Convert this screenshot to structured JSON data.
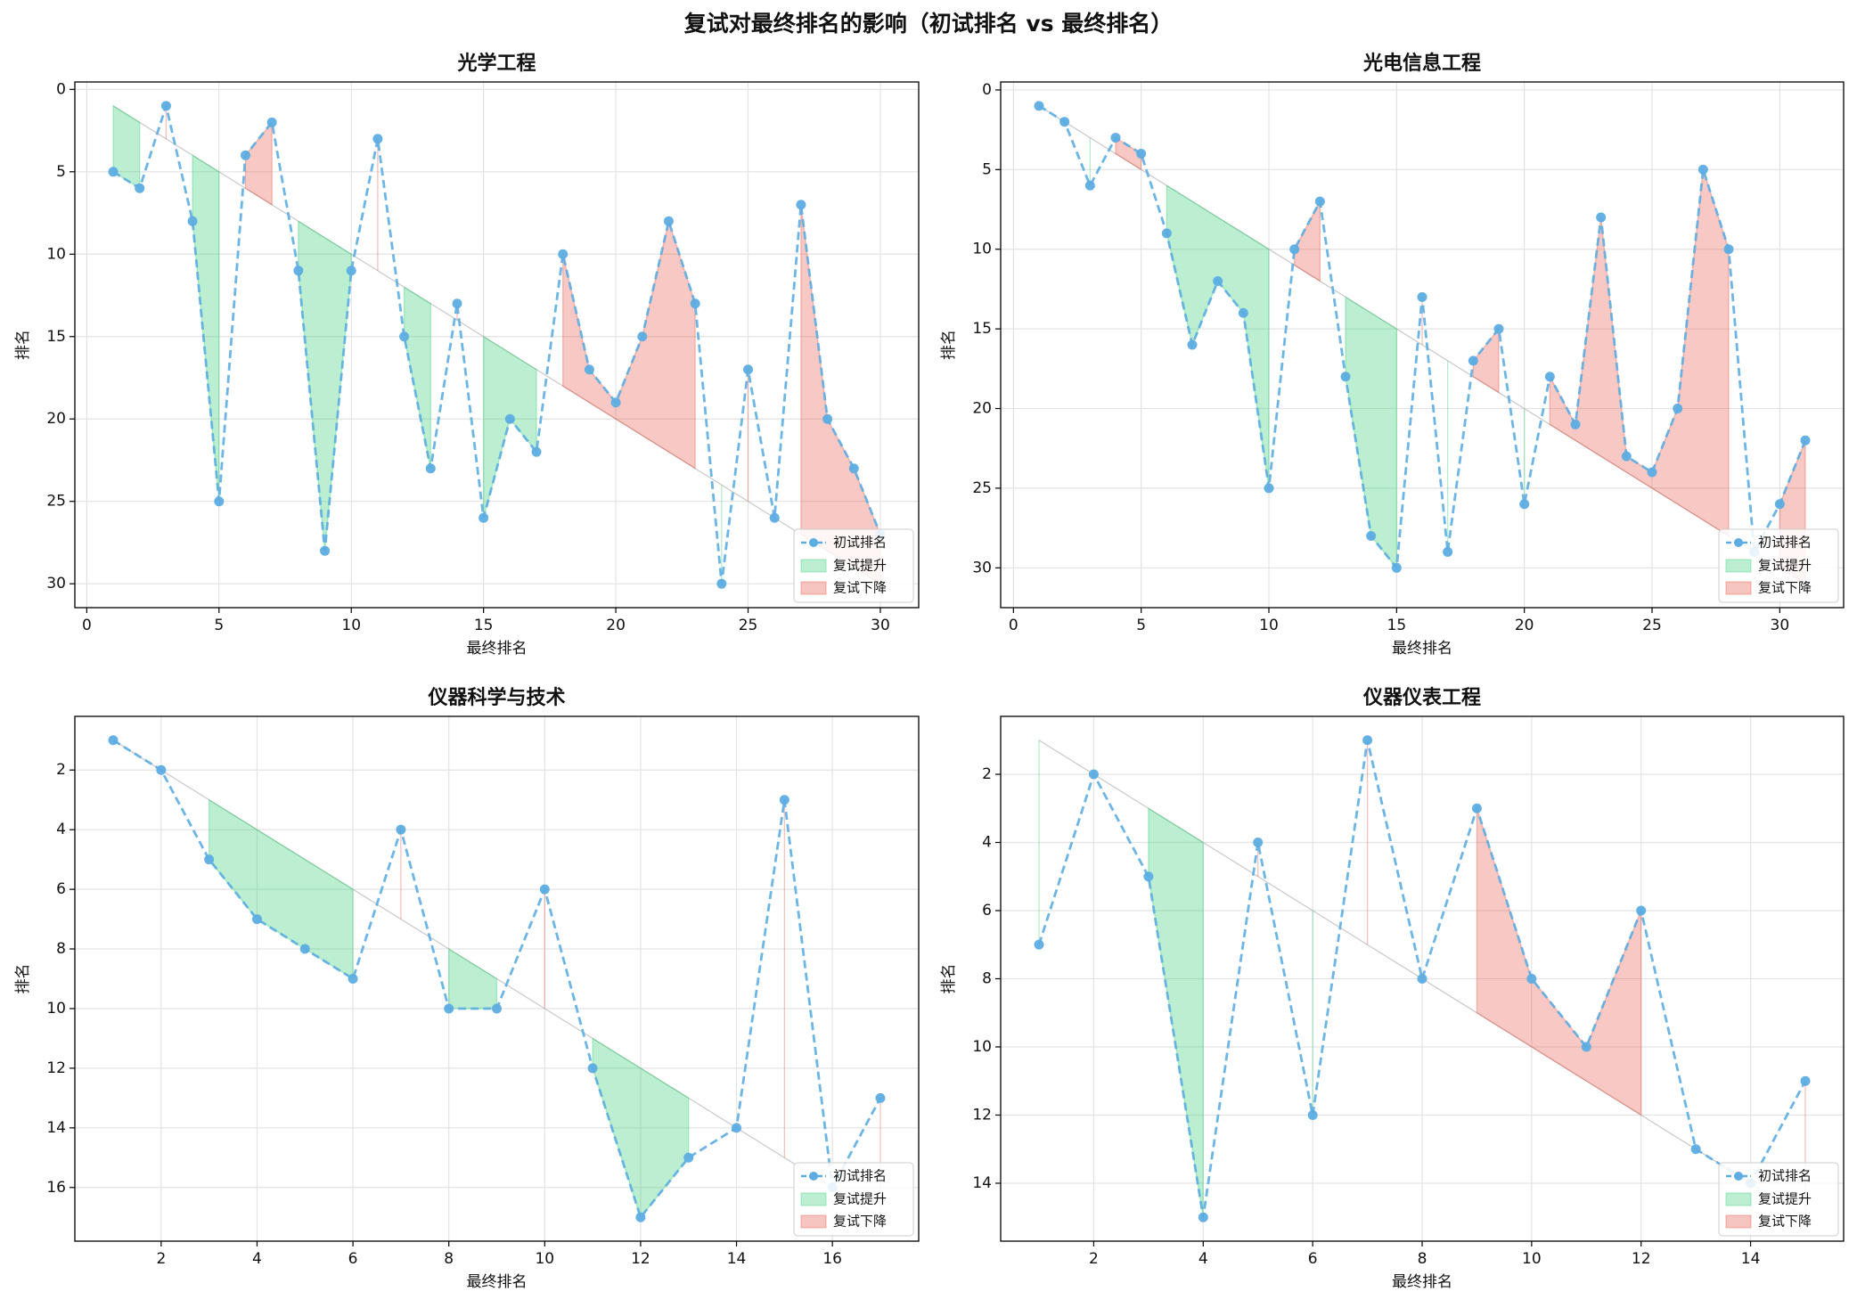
{
  "title": "复试对最终排名的影响（初试排名 vs 最终排名）",
  "chart_data": [
    {
      "type": "line",
      "title": "光学工程",
      "x_label": "最终排名",
      "y_label": "排名",
      "x": [
        1,
        2,
        3,
        4,
        5,
        6,
        7,
        8,
        9,
        10,
        11,
        12,
        13,
        14,
        15,
        16,
        17,
        18,
        19,
        20,
        21,
        22,
        23,
        24,
        25,
        26,
        27,
        28,
        29,
        30
      ],
      "series": [
        {
          "name": "初试排名",
          "color": "#5dade2",
          "values": [
            5,
            6,
            1,
            8,
            25,
            4,
            2,
            11,
            28,
            11,
            3,
            15,
            23,
            13,
            26,
            20,
            22,
            10,
            17,
            19,
            15,
            8,
            13,
            30,
            17,
            26,
            7,
            20,
            23,
            27
          ]
        }
      ],
      "fills": [
        {
          "name": "复试提升",
          "color": "#2ecc71"
        },
        {
          "name": "复试下降",
          "color": "#e74c3c"
        }
      ],
      "xlim": [
        -0.45,
        31.45
      ],
      "ylim": [
        31.45,
        -0.45
      ],
      "xticks": [
        0,
        5,
        10,
        15,
        20,
        25,
        30
      ],
      "yticks": [
        0,
        5,
        10,
        15,
        20,
        25,
        30
      ],
      "grid": true,
      "legend": "lower right"
    },
    {
      "type": "line",
      "title": "光电信息工程",
      "x_label": "最终排名",
      "y_label": "排名",
      "x": [
        1,
        2,
        3,
        4,
        5,
        6,
        7,
        8,
        9,
        10,
        11,
        12,
        13,
        14,
        15,
        16,
        17,
        18,
        19,
        20,
        21,
        22,
        23,
        24,
        25,
        26,
        27,
        28,
        29,
        30,
        31
      ],
      "series": [
        {
          "name": "初试排名",
          "color": "#5dade2",
          "values": [
            1,
            2,
            6,
            3,
            4,
            9,
            16,
            12,
            14,
            25,
            10,
            7,
            18,
            28,
            30,
            13,
            29,
            17,
            15,
            26,
            18,
            21,
            8,
            23,
            24,
            20,
            5,
            10,
            29,
            26,
            22
          ]
        }
      ],
      "fills": [
        {
          "name": "复试提升",
          "color": "#2ecc71"
        },
        {
          "name": "复试下降",
          "color": "#e74c3c"
        }
      ],
      "xlim": [
        -0.5,
        32.5
      ],
      "ylim": [
        32.5,
        -0.5
      ],
      "xticks": [
        0,
        5,
        10,
        15,
        20,
        25,
        30
      ],
      "yticks": [
        0,
        5,
        10,
        15,
        20,
        25,
        30
      ],
      "grid": true,
      "legend": "lower right"
    },
    {
      "type": "line",
      "title": "仪器科学与技术",
      "x_label": "最终排名",
      "y_label": "排名",
      "x": [
        1,
        2,
        3,
        4,
        5,
        6,
        7,
        8,
        9,
        10,
        11,
        12,
        13,
        14,
        15,
        16,
        17
      ],
      "series": [
        {
          "name": "初试排名",
          "color": "#5dade2",
          "values": [
            1,
            2,
            5,
            7,
            8,
            9,
            4,
            10,
            10,
            6,
            12,
            17,
            15,
            14,
            3,
            16,
            13
          ]
        }
      ],
      "fills": [
        {
          "name": "复试提升",
          "color": "#2ecc71"
        },
        {
          "name": "复试下降",
          "color": "#e74c3c"
        }
      ],
      "xlim": [
        0.2,
        17.8
      ],
      "ylim": [
        17.8,
        0.2
      ],
      "xticks": [
        2,
        4,
        6,
        8,
        10,
        12,
        14,
        16
      ],
      "yticks": [
        2,
        4,
        6,
        8,
        10,
        12,
        14,
        16
      ],
      "grid": true,
      "legend": "lower right"
    },
    {
      "type": "line",
      "title": "仪器仪表工程",
      "x_label": "最终排名",
      "y_label": "排名",
      "x": [
        1,
        2,
        3,
        4,
        5,
        6,
        7,
        8,
        9,
        10,
        11,
        12,
        13,
        14,
        15
      ],
      "series": [
        {
          "name": "初试排名",
          "color": "#5dade2",
          "values": [
            7,
            2,
            5,
            15,
            4,
            12,
            1,
            8,
            3,
            8,
            10,
            6,
            13,
            14,
            11
          ]
        }
      ],
      "fills": [
        {
          "name": "复试提升",
          "color": "#2ecc71"
        },
        {
          "name": "复试下降",
          "color": "#e74c3c"
        }
      ],
      "xlim": [
        0.3,
        15.7
      ],
      "ylim": [
        15.7,
        0.3
      ],
      "xticks": [
        2,
        4,
        6,
        8,
        10,
        12,
        14
      ],
      "yticks": [
        2,
        4,
        6,
        8,
        10,
        12,
        14
      ],
      "grid": true,
      "legend": "lower right"
    }
  ]
}
